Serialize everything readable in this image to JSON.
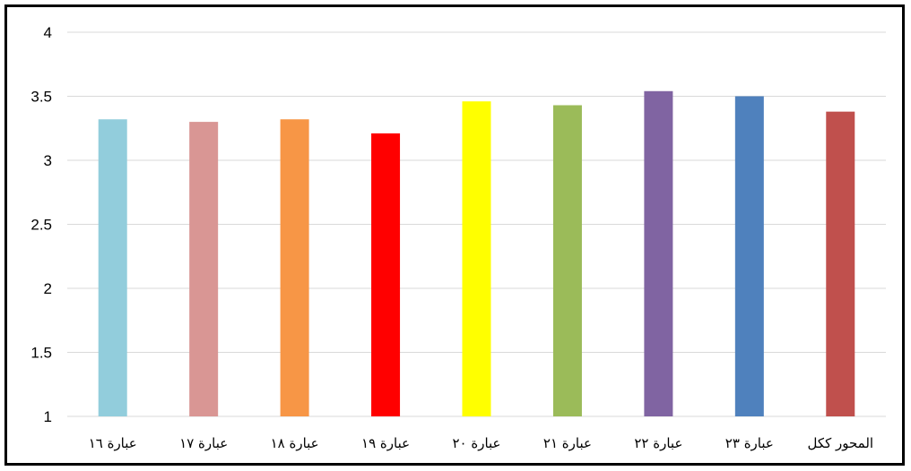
{
  "chart_data": {
    "type": "bar",
    "categories": [
      "عبارة ١٦",
      "عبارة ١٧",
      "عبارة ١٨",
      "عبارة ١٩",
      "عبارة ٢٠",
      "عبارة ٢١",
      "عبارة ٢٢",
      "عبارة ٢٣",
      "المحور ككل"
    ],
    "values": [
      3.32,
      3.3,
      3.32,
      3.21,
      3.46,
      3.43,
      3.54,
      3.5,
      3.38
    ],
    "colors": [
      "#92CDDC",
      "#D99694",
      "#F79646",
      "#FF0000",
      "#FFFF00",
      "#9BBB59",
      "#8064A2",
      "#4F81BD",
      "#C0504D"
    ],
    "ylim": [
      1,
      4
    ],
    "yticks": [
      "1",
      "1.5",
      "2",
      "2.5",
      "3",
      "3.5",
      "4"
    ],
    "grid": true,
    "gridline_color": "#D9D9D9",
    "title": "",
    "xlabel": "",
    "ylabel": ""
  }
}
